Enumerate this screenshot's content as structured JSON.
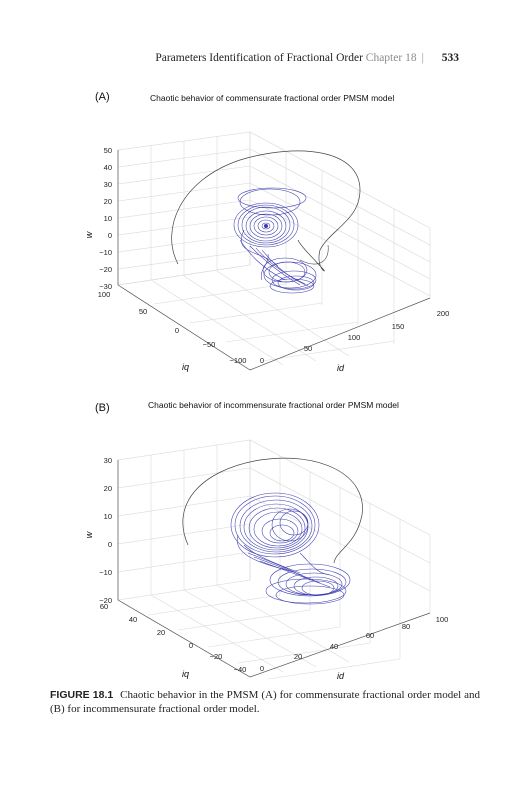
{
  "header": {
    "title": "Parameters Identification of Fractional Order",
    "chapter": "Chapter",
    "chapter_num": "18",
    "page_number": "533"
  },
  "figures": [
    {
      "panel_label": "(A)",
      "title": "Chaotic behavior of commensurate fractional order PMSM model",
      "z_label": "w",
      "z_ticks": [
        "50",
        "40",
        "30",
        "20",
        "10",
        "0",
        "−10",
        "−20",
        "−30"
      ],
      "iq_label": "iq",
      "iq_ticks": [
        "100",
        "50",
        "0",
        "−50",
        "−100"
      ],
      "id_label": "id",
      "id_ticks": [
        "0",
        "50",
        "100",
        "150",
        "200"
      ]
    },
    {
      "panel_label": "(B)",
      "title": "Chaotic behavior of incommensurate fractional order PMSM model",
      "z_label": "w",
      "z_ticks": [
        "30",
        "20",
        "10",
        "0",
        "−10",
        "−20"
      ],
      "iq_label": "iq",
      "iq_ticks": [
        "60",
        "40",
        "20",
        "0",
        "−20",
        "−40"
      ],
      "id_label": "id",
      "id_ticks": [
        "0",
        "20",
        "40",
        "60",
        "80",
        "100"
      ]
    }
  ],
  "caption": {
    "label": "FIGURE 18.1",
    "text": "Chaotic behavior in the PMSM (A) for commensurate fractional order model and (B) for incommensurate fractional order model."
  },
  "colors": {
    "trajectory": "#3b3bb0",
    "transient": "#444444",
    "grid": "#d9d9d9",
    "box": "#555555"
  }
}
